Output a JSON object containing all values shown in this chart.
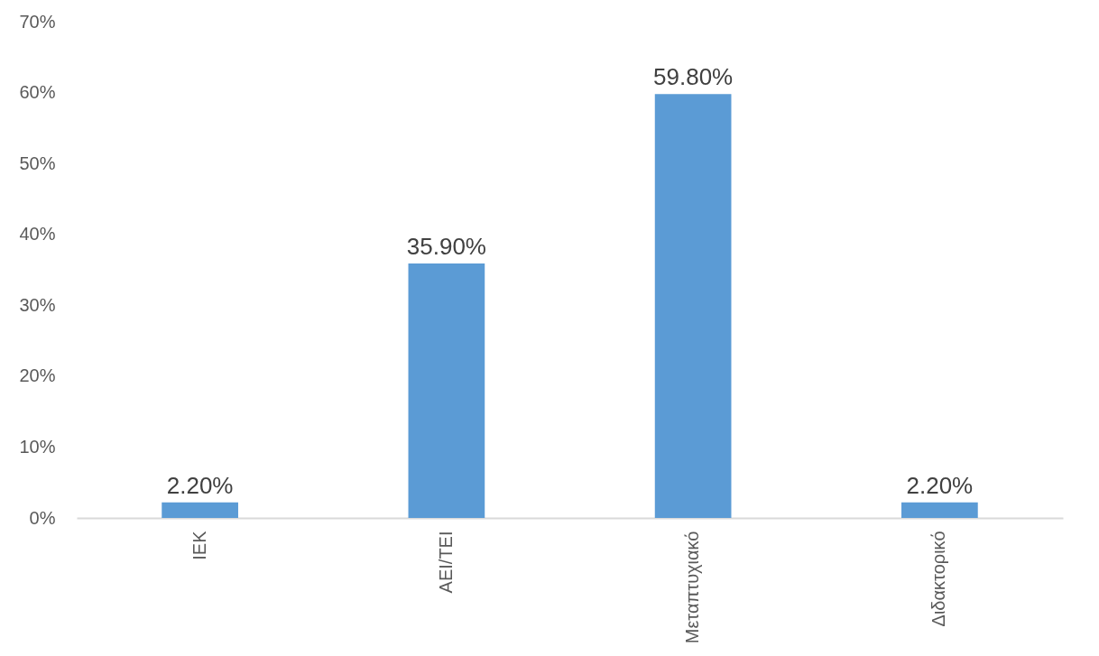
{
  "chart_data": {
    "type": "bar",
    "categories": [
      "ΙΕΚ",
      "ΑΕΙ/ΤΕΙ",
      "Μεταπτυχιακό",
      "Διδακτορικό"
    ],
    "values": [
      2.2,
      35.9,
      59.8,
      2.2
    ],
    "color": "#5b9bd5",
    "value_labels": [
      "2.20%",
      "35.90%",
      "59.80%",
      "2.20%"
    ],
    "ylim": [
      0,
      70
    ],
    "yticks": [
      {
        "value": 0,
        "label": "0%"
      },
      {
        "value": 10,
        "label": "10%"
      },
      {
        "value": 20,
        "label": "20%"
      },
      {
        "value": 30,
        "label": "30%"
      },
      {
        "value": 40,
        "label": "40%"
      },
      {
        "value": 50,
        "label": "50%"
      },
      {
        "value": 60,
        "label": "60%"
      },
      {
        "value": 70,
        "label": "70%"
      }
    ],
    "grid": false
  }
}
